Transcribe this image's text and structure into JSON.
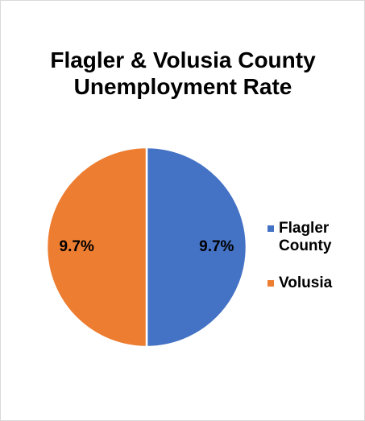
{
  "chart_data": {
    "type": "pie",
    "title": "Flagler & Volusia County Unemployment Rate",
    "categories": [
      "Flagler County",
      "Volusia"
    ],
    "values": [
      9.7,
      9.7
    ],
    "value_labels": [
      "9.7%",
      "9.7%"
    ],
    "colors": [
      "#4472c4",
      "#ed7d31"
    ],
    "legend": "right"
  }
}
